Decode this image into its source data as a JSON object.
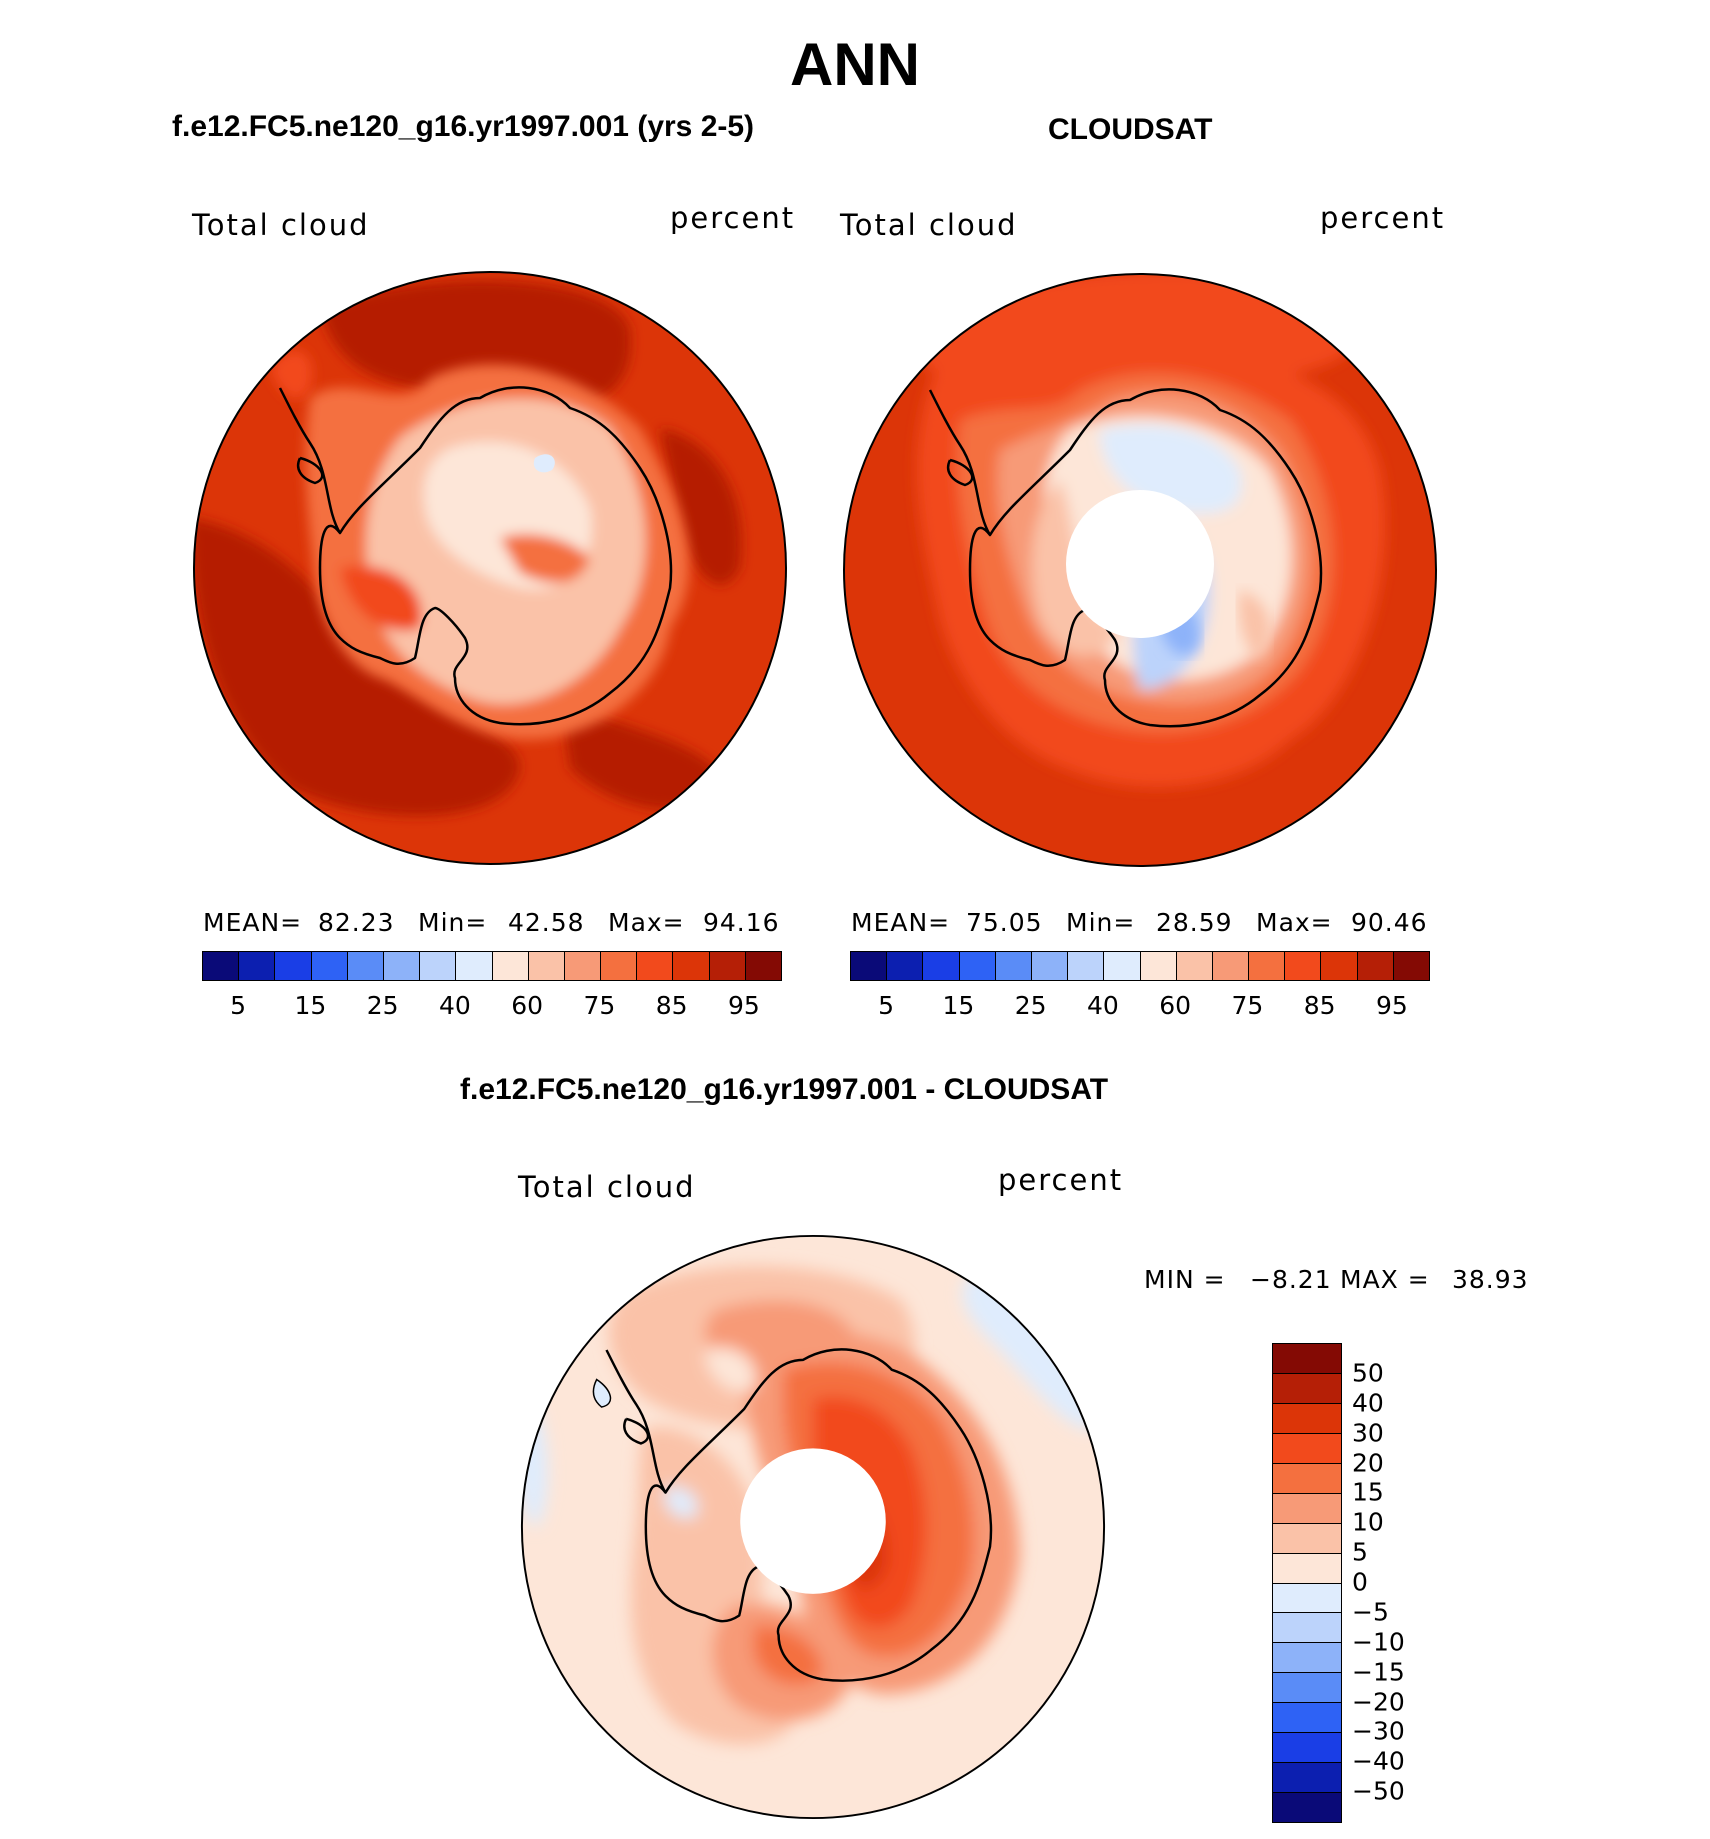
{
  "title": "ANN",
  "panels": [
    {
      "id": "model",
      "title": "f.e12.FC5.ne120_g16.yr1997.001 (yrs 2-5)",
      "variable": "Total cloud",
      "units": "percent",
      "stats": {
        "mean_label": "MEAN=",
        "mean": "82.23",
        "min_label": "Min=",
        "min": "42.58",
        "max_label": "Max=",
        "max": "94.16"
      },
      "colorbar_ticks": [
        "5",
        "15",
        "25",
        "40",
        "60",
        "75",
        "85",
        "95"
      ]
    },
    {
      "id": "obs",
      "title": "CLOUDSAT",
      "variable": "Total cloud",
      "units": "percent",
      "stats": {
        "mean_label": "MEAN=",
        "mean": "75.05",
        "min_label": "Min=",
        "min": "28.59",
        "max_label": "Max=",
        "max": "90.46"
      },
      "colorbar_ticks": [
        "5",
        "15",
        "25",
        "40",
        "60",
        "75",
        "85",
        "95"
      ]
    },
    {
      "id": "diff",
      "title": "f.e12.FC5.ne120_g16.yr1997.001 - CLOUDSAT",
      "variable": "Total cloud",
      "units": "percent",
      "stats": {
        "min_label": "MIN =",
        "min": "−8.21",
        "max_label": "MAX =",
        "max": "38.93"
      },
      "colorbar_ticks": [
        "50",
        "40",
        "30",
        "20",
        "15",
        "10",
        "5",
        "0",
        "−5",
        "−10",
        "−15",
        "−20",
        "−30",
        "−40",
        "−50"
      ]
    }
  ],
  "colors": {
    "abs_scale": [
      "#0a0a78",
      "#0c1fb0",
      "#1a3ee6",
      "#2e62f5",
      "#5a8cf7",
      "#8db2f9",
      "#bcd3fb",
      "#dfecfd",
      "#fde6d8",
      "#fac2a8",
      "#f79a77",
      "#f4703f",
      "#f24a1c",
      "#dc3508",
      "#b51f06",
      "#840a04"
    ],
    "diff_scale": [
      "#840a04",
      "#b51f06",
      "#dc3508",
      "#f24a1c",
      "#f4703f",
      "#f79a77",
      "#fac2a8",
      "#fde6d8",
      "#dfecfd",
      "#bcd3fb",
      "#8db2f9",
      "#5a8cf7",
      "#2e62f5",
      "#1a3ee6",
      "#0c1fb0",
      "#0a0a78"
    ]
  }
}
